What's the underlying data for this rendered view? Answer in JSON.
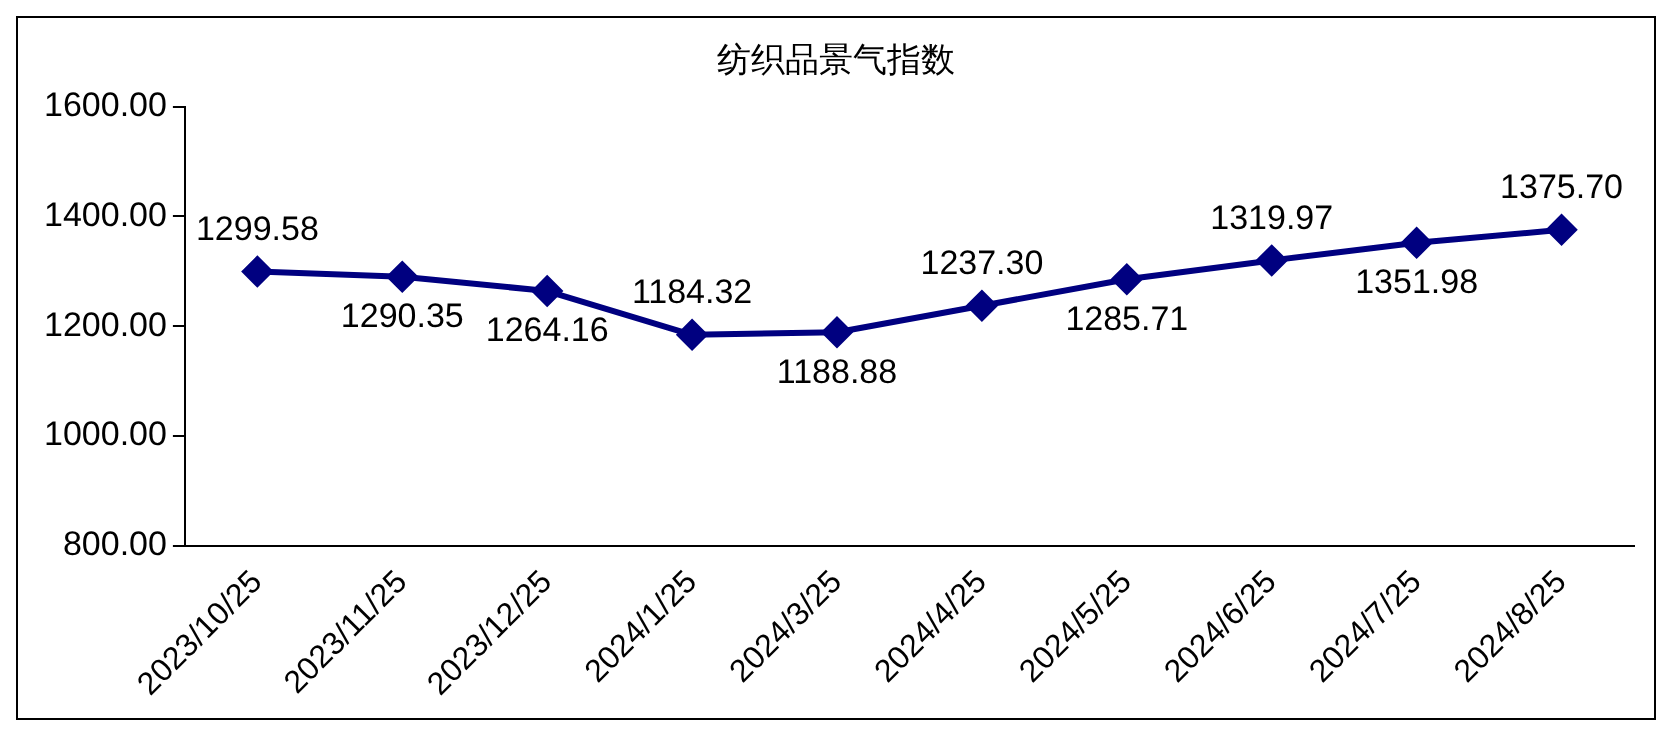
{
  "chart_data": {
    "type": "line",
    "title": "纺织品景气指数",
    "categories": [
      "2023/10/25",
      "2023/11/25",
      "2023/12/25",
      "2024/1/25",
      "2024/3/25",
      "2024/4/25",
      "2024/5/25",
      "2024/6/25",
      "2024/7/25",
      "2024/8/25"
    ],
    "values": [
      1299.58,
      1290.35,
      1264.16,
      1184.32,
      1188.88,
      1237.3,
      1285.71,
      1319.97,
      1351.98,
      1375.7
    ],
    "value_labels": [
      "1299.58",
      "1290.35",
      "1264.16",
      "1184.32",
      "1188.88",
      "1237.30",
      "1285.71",
      "1319.97",
      "1351.98",
      "1375.70"
    ],
    "color": "#000080",
    "marker": "diamond",
    "line_style": "solid",
    "grid": false,
    "legend": false,
    "ylim": [
      800,
      1600
    ],
    "yticks": [
      {
        "value": 800,
        "label": "800.00"
      },
      {
        "value": 1000,
        "label": "1000.00"
      },
      {
        "value": 1200,
        "label": "1200.00"
      },
      {
        "value": 1400,
        "label": "1400.00"
      },
      {
        "value": 1600,
        "label": "1600.00"
      }
    ]
  }
}
